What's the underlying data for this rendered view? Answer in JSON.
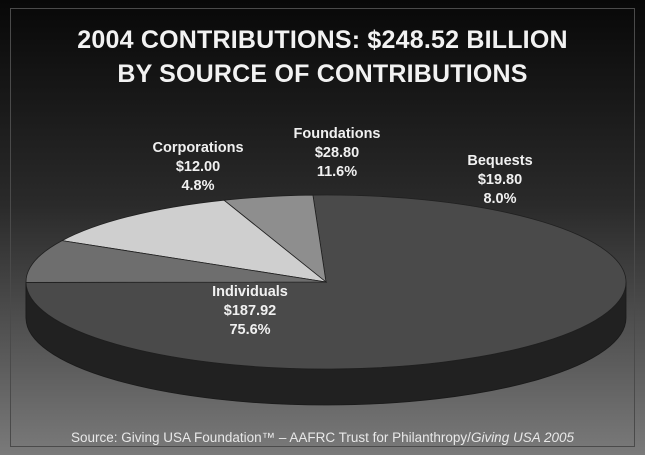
{
  "chart_data": {
    "type": "pie",
    "title": "2004 CONTRIBUTIONS: $248.52 BILLION",
    "subtitle": "BY SOURCE OF CONTRIBUTIONS",
    "slices": [
      {
        "label": "Individuals",
        "value": 187.92,
        "value_label": "$187.92",
        "percent_label": "75.6%",
        "color": "#4a4a4a"
      },
      {
        "label": "Corporations",
        "value": 12.0,
        "value_label": "$12.00",
        "percent_label": "4.8%",
        "color": "#8e8e8e"
      },
      {
        "label": "Foundations",
        "value": 28.8,
        "value_label": "$28.80",
        "percent_label": "11.6%",
        "color": "#cfcfcf"
      },
      {
        "label": "Bequests",
        "value": 19.8,
        "value_label": "$19.80",
        "percent_label": "8.0%",
        "color": "#6e6e6e"
      }
    ]
  },
  "source": {
    "prefix": "Source: Giving USA Foundation™ – AAFRC Trust for Philanthropy/",
    "italic": "Giving USA 2005"
  }
}
